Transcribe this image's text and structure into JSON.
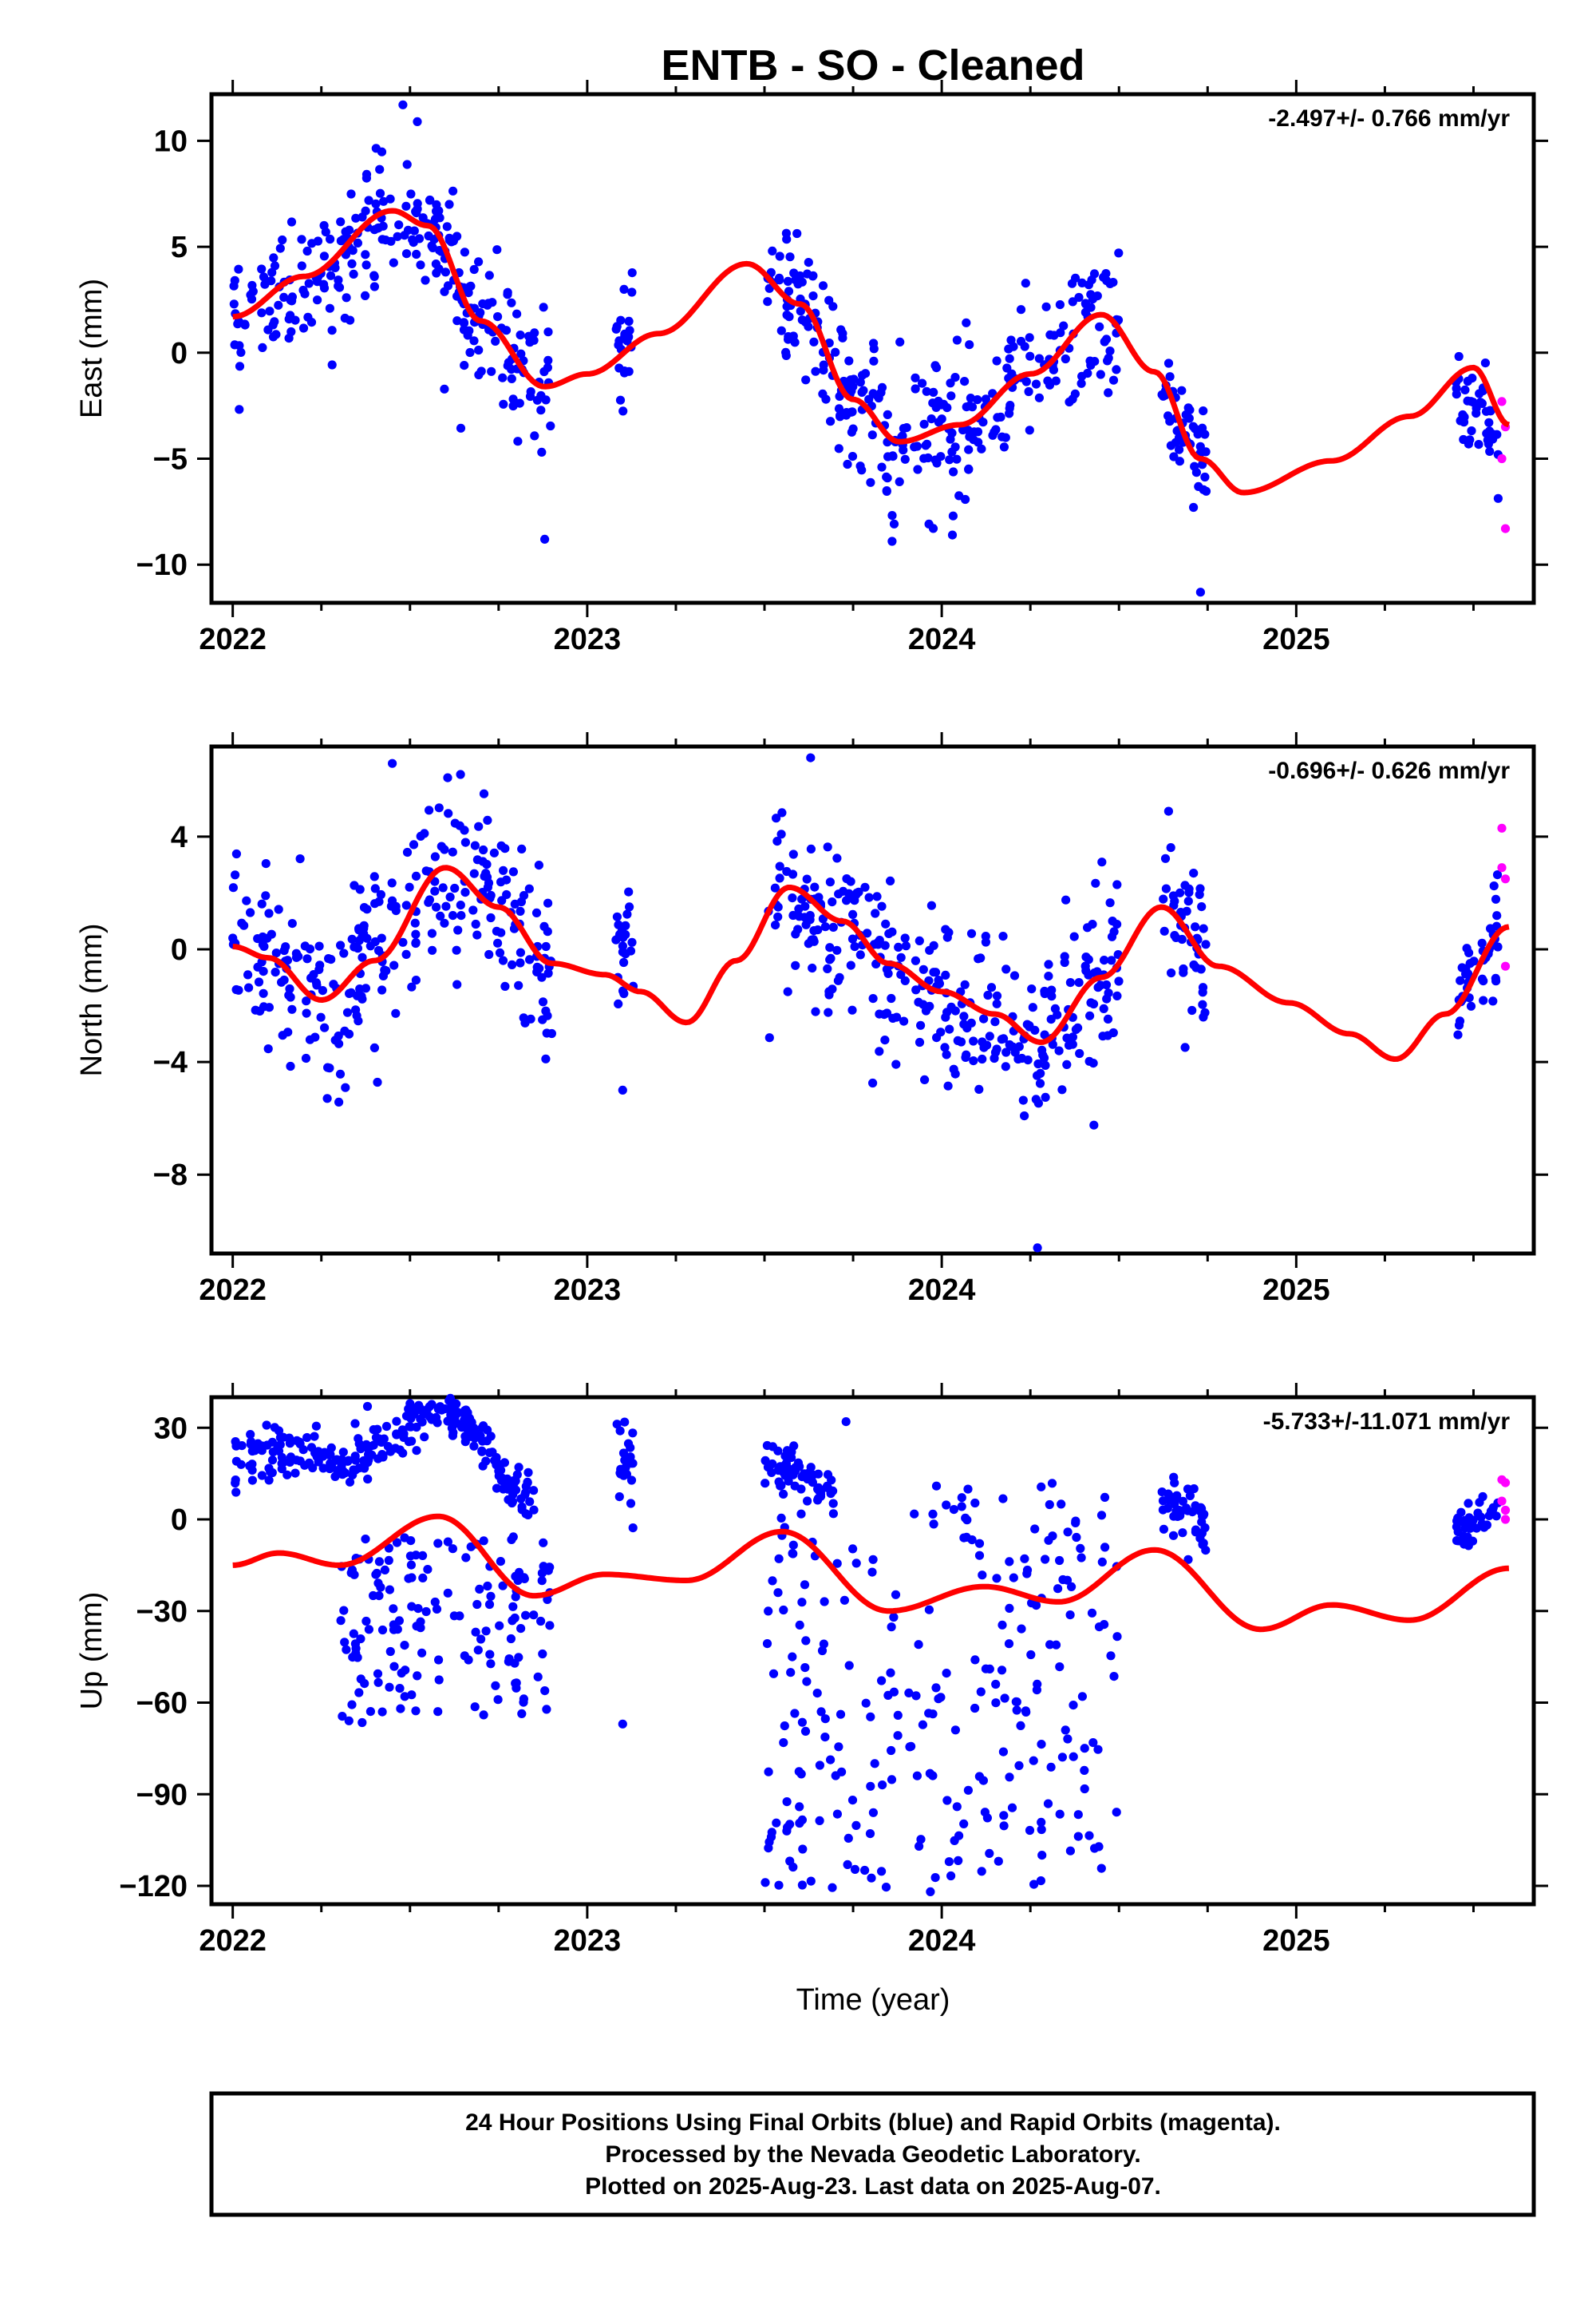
{
  "title": "ENTB  - SO - Cleaned",
  "xlabel": "Time (year)",
  "footer": {
    "line1": "24 Hour Positions Using Final Orbits (blue) and Rapid Orbits (magenta).",
    "line2": "Processed by the Nevada Geodetic Laboratory.",
    "line3": "Plotted on 2025-Aug-23. Last data on 2025-Aug-07."
  },
  "colors": {
    "final": "#0000ff",
    "rapid": "#ff00ff",
    "model": "#ff0000",
    "axis": "#000000"
  },
  "chart_data": [
    {
      "type": "scatter",
      "name": "east",
      "ylabel": "East (mm)",
      "rate": "-2.497+/- 0.766 mm/yr",
      "xlim": [
        2021.94,
        2025.67
      ],
      "ylim": [
        -11.8,
        12.2
      ],
      "xticks": [
        2022,
        2023,
        2024,
        2025
      ],
      "yticks": [
        -10,
        -5,
        0,
        5,
        10
      ],
      "final_segments": [
        {
          "x0": 2022.0,
          "x1": 2022.9,
          "noise": 1.6,
          "offset": 0
        },
        {
          "x0": 2023.08,
          "x1": 2023.13,
          "noise": 1.3,
          "offset": 0.3
        },
        {
          "x0": 2023.5,
          "x1": 2024.5,
          "noise": 1.7,
          "offset": 0
        },
        {
          "x0": 2024.62,
          "x1": 2024.75,
          "noise": 1.5,
          "offset": 0
        },
        {
          "x0": 2025.45,
          "x1": 2025.57,
          "noise": 1.2,
          "offset": -1.5
        }
      ],
      "outliers": [
        [
          2022.48,
          11.7
        ],
        [
          2022.88,
          -8.8
        ],
        [
          2024.73,
          -11.3
        ],
        [
          2023.86,
          -8.9
        ],
        [
          2024.03,
          -8.6
        ]
      ],
      "rapid": [
        [
          2025.58,
          -2.3
        ],
        [
          2025.59,
          -3.5
        ],
        [
          2025.58,
          -5.0
        ],
        [
          2025.59,
          -8.3
        ]
      ],
      "model": [
        [
          2022.0,
          1.7
        ],
        [
          2022.2,
          3.6
        ],
        [
          2022.45,
          6.7
        ],
        [
          2022.55,
          6.0
        ],
        [
          2022.7,
          1.5
        ],
        [
          2022.88,
          -1.6
        ],
        [
          2023.0,
          -1.0
        ],
        [
          2023.2,
          0.9
        ],
        [
          2023.45,
          4.2
        ],
        [
          2023.6,
          2.3
        ],
        [
          2023.75,
          -2.2
        ],
        [
          2023.88,
          -4.2
        ],
        [
          2024.05,
          -3.4
        ],
        [
          2024.25,
          -1.0
        ],
        [
          2024.45,
          1.8
        ],
        [
          2024.6,
          -0.9
        ],
        [
          2024.73,
          -5.0
        ],
        [
          2024.85,
          -6.6
        ],
        [
          2025.1,
          -5.1
        ],
        [
          2025.32,
          -3.0
        ],
        [
          2025.5,
          -0.7
        ],
        [
          2025.6,
          -3.4
        ]
      ]
    },
    {
      "type": "scatter",
      "name": "north",
      "ylabel": "North (mm)",
      "rate": "-0.696+/- 0.626 mm/yr",
      "xlim": [
        2021.94,
        2025.67
      ],
      "ylim": [
        -10.8,
        7.2
      ],
      "xticks": [
        2022,
        2023,
        2024,
        2025
      ],
      "yticks": [
        -8,
        -4,
        0,
        4
      ],
      "final_segments": [
        {
          "x0": 2022.0,
          "x1": 2022.9,
          "noise": 1.5,
          "offset": 0
        },
        {
          "x0": 2023.08,
          "x1": 2023.13,
          "noise": 1.5,
          "offset": 1.5
        },
        {
          "x0": 2023.5,
          "x1": 2024.5,
          "noise": 1.6,
          "offset": -0.3
        },
        {
          "x0": 2024.62,
          "x1": 2024.75,
          "noise": 1.5,
          "offset": 0
        },
        {
          "x0": 2025.45,
          "x1": 2025.57,
          "noise": 0.9,
          "offset": 0
        }
      ],
      "outliers": [
        [
          2022.45,
          6.6
        ],
        [
          2023.63,
          6.8
        ],
        [
          2024.27,
          -10.6
        ],
        [
          2023.1,
          -5.0
        ],
        [
          2024.64,
          4.9
        ]
      ],
      "rapid": [
        [
          2025.58,
          4.3
        ],
        [
          2025.58,
          2.9
        ],
        [
          2025.59,
          2.5
        ],
        [
          2025.59,
          -0.6
        ]
      ],
      "model": [
        [
          2022.0,
          0.1
        ],
        [
          2022.1,
          -0.3
        ],
        [
          2022.25,
          -1.8
        ],
        [
          2022.4,
          -0.4
        ],
        [
          2022.6,
          2.9
        ],
        [
          2022.75,
          1.5
        ],
        [
          2022.9,
          -0.5
        ],
        [
          2023.05,
          -0.9
        ],
        [
          2023.15,
          -1.5
        ],
        [
          2023.28,
          -2.6
        ],
        [
          2023.42,
          -0.4
        ],
        [
          2023.57,
          2.2
        ],
        [
          2023.72,
          1.0
        ],
        [
          2023.85,
          -0.5
        ],
        [
          2024.0,
          -1.5
        ],
        [
          2024.15,
          -2.3
        ],
        [
          2024.28,
          -3.3
        ],
        [
          2024.45,
          -1.0
        ],
        [
          2024.62,
          1.5
        ],
        [
          2024.78,
          -0.6
        ],
        [
          2024.98,
          -1.9
        ],
        [
          2025.15,
          -3.0
        ],
        [
          2025.28,
          -3.9
        ],
        [
          2025.42,
          -2.3
        ],
        [
          2025.6,
          0.8
        ]
      ]
    },
    {
      "type": "scatter",
      "name": "up",
      "ylabel": "Up (mm)",
      "rate": "-5.733+/-11.071 mm/yr",
      "xlim": [
        2021.94,
        2025.67
      ],
      "ylim": [
        -126,
        40
      ],
      "xticks": [
        2022,
        2023,
        2024,
        2025
      ],
      "yticks": [
        -120,
        -90,
        -60,
        -30,
        0,
        30
      ],
      "final_segments": [
        {
          "x0": 2022.0,
          "x1": 2022.85,
          "noise": 4,
          "offset": 34
        },
        {
          "x0": 2023.08,
          "x1": 2023.13,
          "noise": 8,
          "offset": 38
        },
        {
          "x0": 2023.5,
          "x1": 2023.7,
          "noise": 4,
          "offset": 22
        },
        {
          "x0": 2024.62,
          "x1": 2024.75,
          "noise": 5,
          "offset": 18
        },
        {
          "x0": 2025.45,
          "x1": 2025.57,
          "noise": 3,
          "offset": 20
        }
      ],
      "spread_segments": [
        {
          "x0": 2022.3,
          "x1": 2022.9,
          "ymin": -68,
          "ymax": -5
        },
        {
          "x0": 2023.5,
          "x1": 2024.5,
          "ymin": -124,
          "ymax": 12
        }
      ],
      "outliers": [
        [
          2022.38,
          37
        ],
        [
          2023.73,
          32
        ],
        [
          2023.1,
          -67
        ]
      ],
      "rapid": [
        [
          2025.58,
          13
        ],
        [
          2025.59,
          12
        ],
        [
          2025.58,
          6
        ],
        [
          2025.59,
          3
        ],
        [
          2025.59,
          0
        ]
      ],
      "model": [
        [
          2022.0,
          -15
        ],
        [
          2022.13,
          -11
        ],
        [
          2022.3,
          -15
        ],
        [
          2022.58,
          1
        ],
        [
          2022.85,
          -25
        ],
        [
          2023.05,
          -18
        ],
        [
          2023.28,
          -20
        ],
        [
          2023.55,
          -4
        ],
        [
          2023.85,
          -30
        ],
        [
          2024.12,
          -22
        ],
        [
          2024.33,
          -27
        ],
        [
          2024.6,
          -10
        ],
        [
          2024.9,
          -36
        ],
        [
          2025.1,
          -28
        ],
        [
          2025.32,
          -33
        ],
        [
          2025.6,
          -16
        ]
      ]
    }
  ]
}
